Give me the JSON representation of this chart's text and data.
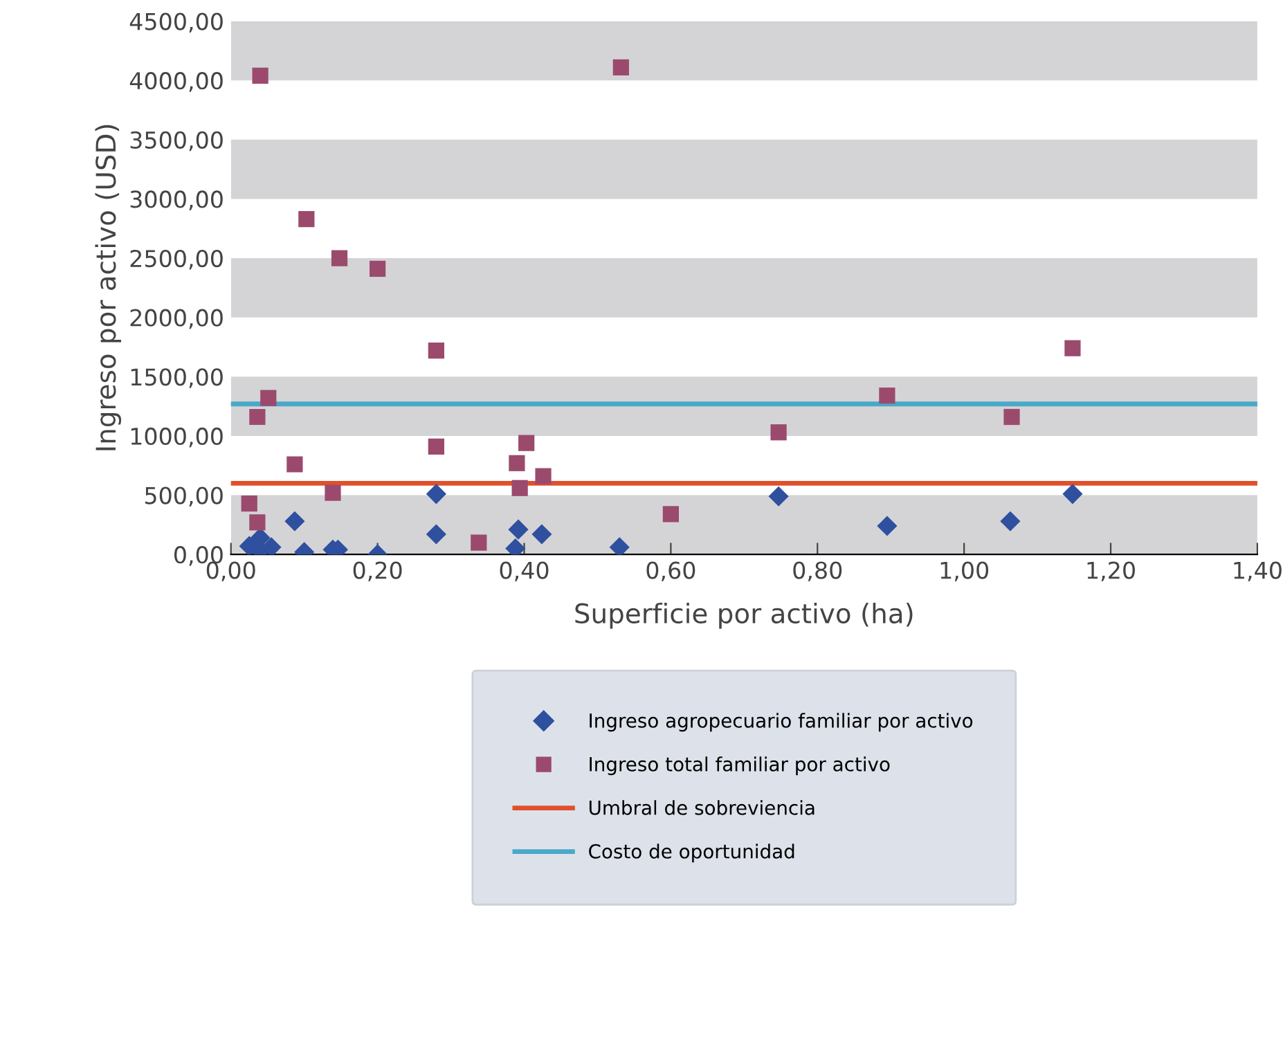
{
  "chart_data": {
    "type": "scatter",
    "xlabel": "Superficie por activo (ha)",
    "ylabel": "Ingreso por activo (USD)",
    "xlim": [
      0,
      1.4
    ],
    "ylim": [
      0,
      4500
    ],
    "xticks": [
      {
        "value": 0,
        "label": "0,00"
      },
      {
        "value": 0.2,
        "label": "0,20"
      },
      {
        "value": 0.4,
        "label": "0,40"
      },
      {
        "value": 0.6,
        "label": "0,60"
      },
      {
        "value": 0.8,
        "label": "0,80"
      },
      {
        "value": 1.0,
        "label": "1,00"
      },
      {
        "value": 1.2,
        "label": "1,20"
      },
      {
        "value": 1.4,
        "label": "1,40"
      }
    ],
    "yticks": [
      {
        "value": 0,
        "label": "0,00"
      },
      {
        "value": 500,
        "label": "500,00"
      },
      {
        "value": 1000,
        "label": "1000,00"
      },
      {
        "value": 1500,
        "label": "1500,00"
      },
      {
        "value": 2000,
        "label": "2000,00"
      },
      {
        "value": 2500,
        "label": "2500,00"
      },
      {
        "value": 3000,
        "label": "3000,00"
      },
      {
        "value": 3500,
        "label": "3500,00"
      },
      {
        "value": 4000,
        "label": "4000,00"
      },
      {
        "value": 4500,
        "label": "4500,00"
      }
    ],
    "series": [
      {
        "name": "Ingreso agropecuario familiar por activo",
        "color": "#2f4f9f",
        "marker": "diamond",
        "x": [
          0.025,
          0.04,
          0.04,
          0.055,
          0.087,
          0.1,
          0.139,
          0.146,
          0.2,
          0.28,
          0.28,
          0.388,
          0.392,
          0.424,
          0.53,
          0.747,
          0.895,
          1.063,
          1.148
        ],
        "values": [
          70,
          30,
          140,
          60,
          280,
          20,
          40,
          40,
          0,
          510,
          170,
          50,
          210,
          170,
          60,
          490,
          240,
          280,
          510
        ]
      },
      {
        "name": "Ingreso total familiar por activo",
        "color": "#9b4a6e",
        "marker": "square",
        "x": [
          0.025,
          0.036,
          0.036,
          0.04,
          0.051,
          0.087,
          0.103,
          0.139,
          0.148,
          0.2,
          0.28,
          0.28,
          0.338,
          0.39,
          0.394,
          0.403,
          0.426,
          0.532,
          0.6,
          0.747,
          0.895,
          1.065,
          1.148
        ],
        "values": [
          430,
          270,
          1160,
          4040,
          1320,
          760,
          2830,
          520,
          2500,
          2410,
          1720,
          910,
          100,
          770,
          560,
          940,
          660,
          4110,
          340,
          1030,
          1340,
          1160,
          1740
        ]
      }
    ],
    "ref_lines": [
      {
        "axis": "y",
        "value": 600,
        "label": "Umbral de sobreviencia",
        "color": "#e0502a"
      },
      {
        "axis": "y",
        "value": 1270,
        "label": "Costo de oportunidad",
        "color": "#4aa8c8"
      }
    ],
    "bands": [
      {
        "axis": "y",
        "from": 0,
        "to": 500,
        "color": "#d4d4d6"
      },
      {
        "axis": "y",
        "from": 1000,
        "to": 1500,
        "color": "#d4d4d6"
      },
      {
        "axis": "y",
        "from": 2000,
        "to": 2500,
        "color": "#d4d4d6"
      },
      {
        "axis": "y",
        "from": 3000,
        "to": 3500,
        "color": "#d4d4d6"
      },
      {
        "axis": "y",
        "from": 4000,
        "to": 4500,
        "color": "#d4d4d6"
      }
    ],
    "grid": false,
    "legend": "bottom"
  }
}
